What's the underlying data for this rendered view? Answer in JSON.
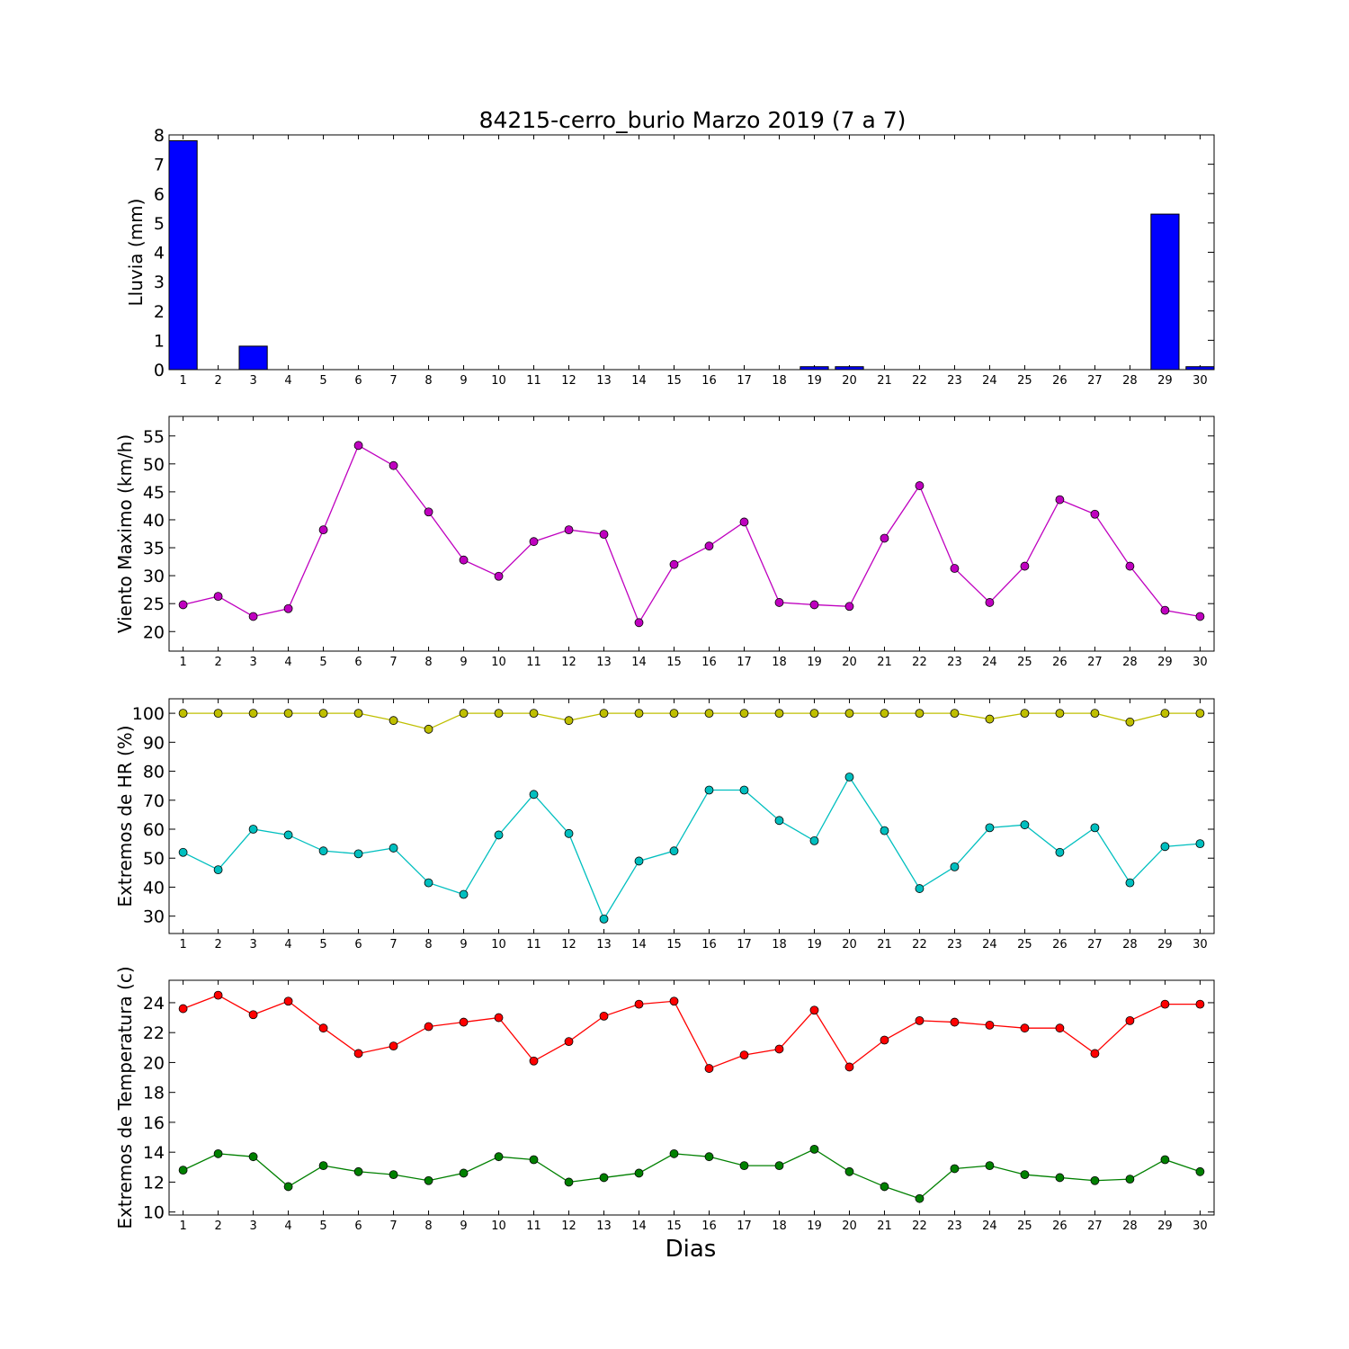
{
  "figure": {
    "title": "84215-cerro_burio Marzo 2019  (7 a 7)",
    "xlabel": "Dias"
  },
  "chart_data": [
    {
      "type": "bar",
      "ylabel": "Lluvia (mm)",
      "ylim": [
        0,
        8
      ],
      "yticks": [
        0,
        1,
        2,
        3,
        4,
        5,
        6,
        7,
        8
      ],
      "x": [
        1,
        2,
        3,
        4,
        5,
        6,
        7,
        8,
        9,
        10,
        11,
        12,
        13,
        14,
        15,
        16,
        17,
        18,
        19,
        20,
        21,
        22,
        23,
        24,
        25,
        26,
        27,
        28,
        29,
        30
      ],
      "values": [
        7.8,
        0,
        0.8,
        0,
        0,
        0,
        0,
        0,
        0,
        0,
        0,
        0,
        0,
        0,
        0,
        0,
        0,
        0,
        0.1,
        0.1,
        0,
        0,
        0,
        0,
        0,
        0,
        0,
        0,
        5.3,
        0.1
      ],
      "color": "#0000ff"
    },
    {
      "type": "line",
      "ylabel": "Viento Maximo (km/h)",
      "ylim": [
        16.5,
        58.5
      ],
      "yticks": [
        20,
        25,
        30,
        35,
        40,
        45,
        50,
        55
      ],
      "x": [
        1,
        2,
        3,
        4,
        5,
        6,
        7,
        8,
        9,
        10,
        11,
        12,
        13,
        14,
        15,
        16,
        17,
        18,
        19,
        20,
        21,
        22,
        23,
        24,
        25,
        26,
        27,
        28,
        29,
        30
      ],
      "series": [
        {
          "values": [
            24.8,
            26.3,
            22.7,
            24.1,
            38.2,
            53.3,
            49.7,
            41.4,
            32.8,
            29.9,
            36.1,
            38.2,
            37.4,
            21.6,
            32.0,
            35.3,
            39.6,
            25.2,
            24.8,
            24.5,
            36.7,
            46.1,
            31.3,
            25.2,
            31.7,
            43.6,
            41.0,
            31.7,
            23.8,
            22.7
          ],
          "color": "#bf00bf"
        }
      ]
    },
    {
      "type": "line",
      "ylabel": "Extremos de HR (%)",
      "ylim": [
        24,
        105
      ],
      "yticks": [
        30,
        40,
        50,
        60,
        70,
        80,
        90,
        100
      ],
      "x": [
        1,
        2,
        3,
        4,
        5,
        6,
        7,
        8,
        9,
        10,
        11,
        12,
        13,
        14,
        15,
        16,
        17,
        18,
        19,
        20,
        21,
        22,
        23,
        24,
        25,
        26,
        27,
        28,
        29,
        30
      ],
      "series": [
        {
          "values": [
            100,
            100,
            100,
            100,
            100,
            100,
            97.5,
            94.5,
            100,
            100,
            100,
            97.5,
            100,
            100,
            100,
            100,
            100,
            100,
            100,
            100,
            100,
            100,
            100,
            98,
            100,
            100,
            100,
            97,
            100,
            100
          ],
          "color": "#bfbf00"
        },
        {
          "values": [
            52,
            46,
            60,
            58,
            52.5,
            51.5,
            53.5,
            41.5,
            37.5,
            58,
            72,
            58.5,
            29,
            49,
            52.5,
            73.5,
            73.5,
            63,
            56,
            78,
            59.5,
            39.5,
            47,
            60.5,
            61.5,
            52,
            60.5,
            41.5,
            54,
            55
          ],
          "color": "#00bfbf"
        }
      ]
    },
    {
      "type": "line",
      "ylabel": "Extremos de Temperatura (c)",
      "ylim": [
        9.8,
        25.5
      ],
      "yticks": [
        10,
        12,
        14,
        16,
        18,
        20,
        22,
        24
      ],
      "x": [
        1,
        2,
        3,
        4,
        5,
        6,
        7,
        8,
        9,
        10,
        11,
        12,
        13,
        14,
        15,
        16,
        17,
        18,
        19,
        20,
        21,
        22,
        23,
        24,
        25,
        26,
        27,
        28,
        29,
        30
      ],
      "series": [
        {
          "values": [
            23.6,
            24.5,
            23.2,
            24.1,
            22.3,
            20.6,
            21.1,
            22.4,
            22.7,
            23.0,
            20.1,
            21.4,
            23.1,
            23.9,
            24.1,
            19.6,
            20.5,
            20.9,
            23.5,
            19.7,
            21.5,
            22.8,
            22.7,
            22.5,
            22.3,
            22.3,
            20.6,
            22.8,
            23.9,
            23.9
          ],
          "color": "#ff0000"
        },
        {
          "values": [
            12.8,
            13.9,
            13.7,
            11.7,
            13.1,
            12.7,
            12.5,
            12.1,
            12.6,
            13.7,
            13.5,
            12.0,
            12.3,
            12.6,
            13.9,
            13.7,
            13.1,
            13.1,
            14.2,
            12.7,
            11.7,
            10.9,
            12.9,
            13.1,
            12.5,
            12.3,
            12.1,
            12.2,
            13.5,
            12.7
          ],
          "color": "#008000"
        }
      ]
    }
  ]
}
